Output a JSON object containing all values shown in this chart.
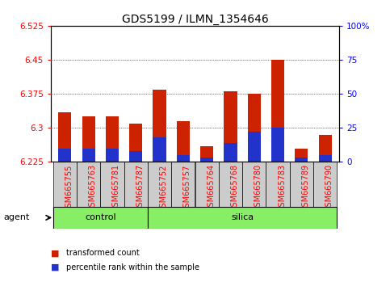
{
  "title": "GDS5199 / ILMN_1354646",
  "samples": [
    "GSM665755",
    "GSM665763",
    "GSM665781",
    "GSM665787",
    "GSM665752",
    "GSM665757",
    "GSM665764",
    "GSM665768",
    "GSM665780",
    "GSM665783",
    "GSM665789",
    "GSM665790"
  ],
  "groups": [
    "control",
    "control",
    "control",
    "control",
    "silica",
    "silica",
    "silica",
    "silica",
    "silica",
    "silica",
    "silica",
    "silica"
  ],
  "transformed_count": [
    6.335,
    6.325,
    6.325,
    6.31,
    6.385,
    6.315,
    6.26,
    6.38,
    6.375,
    6.45,
    6.255,
    6.285
  ],
  "percentile_rank": [
    10,
    10,
    10,
    8,
    18,
    5,
    3,
    14,
    22,
    25,
    3,
    5
  ],
  "baseline": 6.225,
  "ylim": [
    6.225,
    6.525
  ],
  "yticks": [
    6.225,
    6.3,
    6.375,
    6.45,
    6.525
  ],
  "right_yticks": [
    0,
    25,
    50,
    75,
    100
  ],
  "bar_color_red": "#cc2200",
  "bar_color_blue": "#2233cc",
  "grid_color": "#000000",
  "title_fontsize": 10,
  "tick_fontsize": 7.5,
  "label_fontsize": 8,
  "control_color": "#88ee66",
  "silica_color": "#88ee66",
  "tick_label_bg": "#cccccc",
  "agent_label": "agent",
  "legend_red": "transformed count",
  "legend_blue": "percentile rank within the sample"
}
